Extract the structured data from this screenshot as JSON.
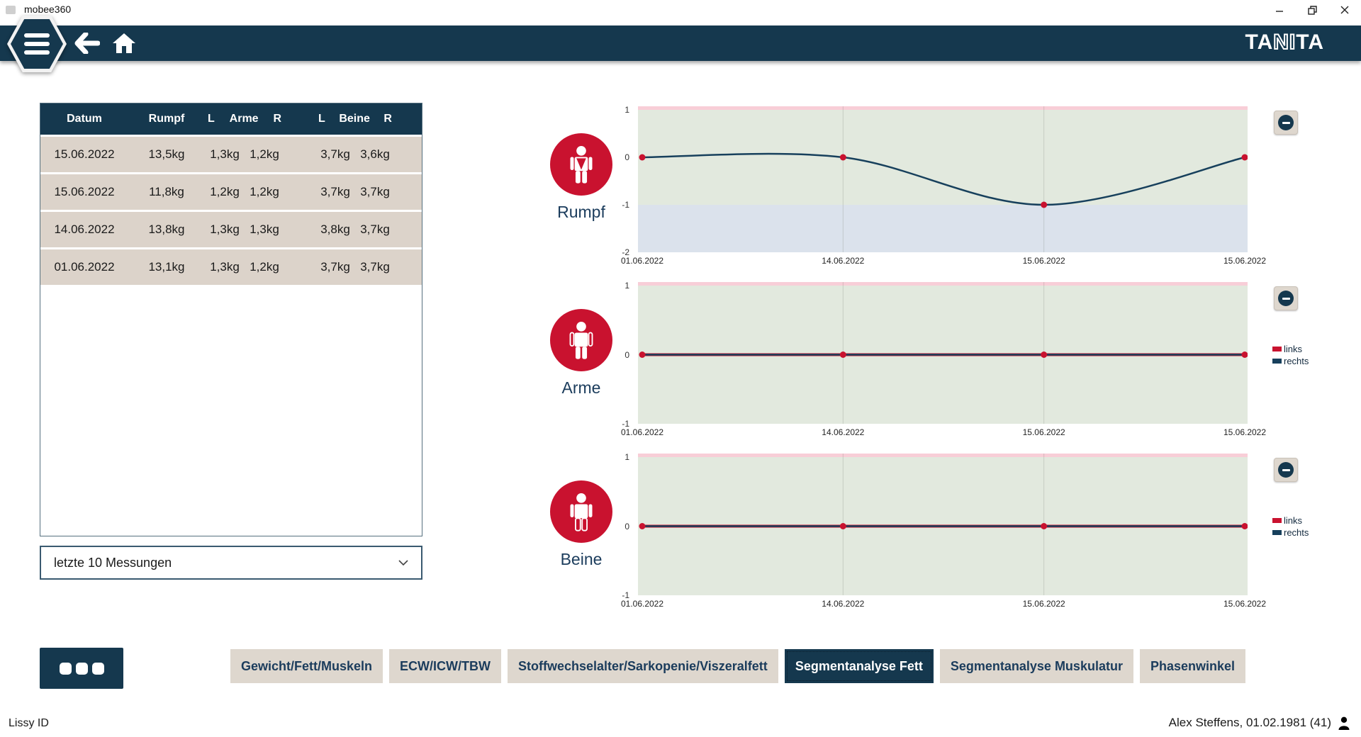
{
  "window": {
    "title": "mobee360"
  },
  "navbar": {
    "brand_solid_1": "TA",
    "brand_hollow": "NI",
    "brand_solid_2": "TA"
  },
  "table": {
    "headers": {
      "datum": "Datum",
      "rumpf": "Rumpf",
      "arme_l": "L",
      "arme": "Arme",
      "arme_r": "R",
      "beine_l": "L",
      "beine": "Beine",
      "beine_r": "R"
    },
    "rows": [
      {
        "datum": "15.06.2022",
        "rumpf": "13,5kg",
        "arme_l": "1,3kg",
        "arme_r": "1,2kg",
        "beine_l": "3,7kg",
        "beine_r": "3,6kg"
      },
      {
        "datum": "15.06.2022",
        "rumpf": "11,8kg",
        "arme_l": "1,2kg",
        "arme_r": "1,2kg",
        "beine_l": "3,7kg",
        "beine_r": "3,7kg"
      },
      {
        "datum": "14.06.2022",
        "rumpf": "13,8kg",
        "arme_l": "1,3kg",
        "arme_r": "1,3kg",
        "beine_l": "3,8kg",
        "beine_r": "3,7kg"
      },
      {
        "datum": "01.06.2022",
        "rumpf": "13,1kg",
        "arme_l": "1,3kg",
        "arme_r": "1,2kg",
        "beine_l": "3,7kg",
        "beine_r": "3,7kg"
      }
    ]
  },
  "filter": {
    "value": "letzte 10 Messungen"
  },
  "chart_data": [
    {
      "type": "line",
      "label": "Rumpf",
      "x": [
        "01.06.2022",
        "14.06.2022",
        "15.06.2022",
        "15.06.2022"
      ],
      "ylim": [
        -2,
        1
      ],
      "yticks": [
        1,
        0,
        -1,
        -2
      ],
      "bands": [
        {
          "from": 1,
          "to": -1,
          "color": "#E2E9DE"
        },
        {
          "from": -1,
          "to": -2,
          "color": "#DBE2EC"
        }
      ],
      "top_strip_color": "#F8CED7",
      "series": [
        {
          "name": "rumpf",
          "color": "#17405C",
          "values": [
            0,
            0,
            -1,
            0
          ],
          "smooth": true
        }
      ],
      "marker_color": "#C9122F",
      "legend": []
    },
    {
      "type": "line",
      "label": "Arme",
      "x": [
        "01.06.2022",
        "14.06.2022",
        "15.06.2022",
        "15.06.2022"
      ],
      "ylim": [
        -1,
        1
      ],
      "yticks": [
        1,
        0,
        -1
      ],
      "bands": [
        {
          "from": 1,
          "to": -1,
          "color": "#E2E9DE"
        }
      ],
      "top_strip_color": "#F8CED7",
      "series": [
        {
          "name": "links",
          "color": "#C9122F",
          "values": [
            0,
            0,
            0,
            0
          ],
          "smooth": false
        },
        {
          "name": "rechts",
          "color": "#17405C",
          "values": [
            0,
            0,
            0,
            0
          ],
          "smooth": false
        }
      ],
      "marker_color": "#C9122F",
      "legend": [
        {
          "label": "links",
          "color": "#C9122F"
        },
        {
          "label": "rechts",
          "color": "#17405C"
        }
      ]
    },
    {
      "type": "line",
      "label": "Beine",
      "x": [
        "01.06.2022",
        "14.06.2022",
        "15.06.2022",
        "15.06.2022"
      ],
      "ylim": [
        -1,
        1
      ],
      "yticks": [
        1,
        0,
        -1
      ],
      "bands": [
        {
          "from": 1,
          "to": -1,
          "color": "#E2E9DE"
        }
      ],
      "top_strip_color": "#F8CED7",
      "series": [
        {
          "name": "links",
          "color": "#C9122F",
          "values": [
            0,
            0,
            0,
            0
          ],
          "smooth": false
        },
        {
          "name": "rechts",
          "color": "#17405C",
          "values": [
            0,
            0,
            0,
            0
          ],
          "smooth": false
        }
      ],
      "marker_color": "#C9122F",
      "legend": [
        {
          "label": "links",
          "color": "#C9122F"
        },
        {
          "label": "rechts",
          "color": "#17405C"
        }
      ]
    }
  ],
  "tabs": [
    {
      "label": "Gewicht/Fett/Muskeln",
      "active": false
    },
    {
      "label": "ECW/ICW/TBW",
      "active": false
    },
    {
      "label": "Stoffwechselalter/Sarkopenie/Viszeralfett",
      "active": false
    },
    {
      "label": "Segmentanalyse Fett",
      "active": true
    },
    {
      "label": "Segmentanalyse Muskulatur",
      "active": false
    },
    {
      "label": "Phasenwinkel",
      "active": false
    }
  ],
  "footer": {
    "left": "Lissy ID",
    "right": "Alex Steffens, 01.02.1981 (41)"
  },
  "colors": {
    "navy": "#15384E",
    "red": "#C9122F",
    "row_beige": "#DCD3CA",
    "tab_beige": "#DED7CE",
    "band_green": "#E2E9DE",
    "band_blue": "#DBE2EC",
    "strip_pink": "#F8CED7"
  }
}
